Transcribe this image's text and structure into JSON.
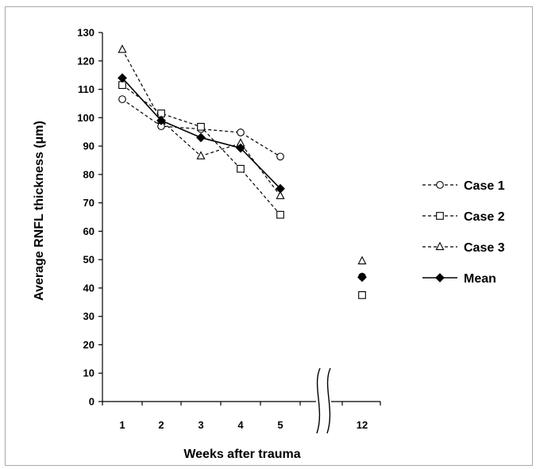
{
  "chart_data": {
    "type": "line",
    "title": "",
    "xlabel": "Weeks after trauma",
    "ylabel": "Average RNFL thickness (μm)",
    "x_categories": [
      "1",
      "2",
      "3",
      "4",
      "5",
      "12"
    ],
    "x_values": [
      1,
      2,
      3,
      4,
      5,
      12
    ],
    "x_axis_break_between": [
      5,
      12
    ],
    "ylim": [
      0,
      130
    ],
    "y_ticks": [
      0,
      10,
      20,
      30,
      40,
      50,
      60,
      70,
      80,
      90,
      100,
      110,
      120,
      130
    ],
    "y_tick_labels": [
      "0",
      "10",
      "20",
      "30",
      "40",
      "50",
      "60",
      "70",
      "80",
      "90",
      "100",
      "110",
      "120",
      "130"
    ],
    "grid": false,
    "legend_position": "right",
    "series": [
      {
        "name": "Case 1",
        "marker": "circle",
        "line_style": "dashed",
        "color": "#000000",
        "points": [
          [
            1,
            106.5
          ],
          [
            2,
            97
          ],
          [
            3,
            96
          ],
          [
            4,
            94.8
          ],
          [
            5,
            86.3
          ],
          [
            12,
            44
          ]
        ],
        "connected_until": 5
      },
      {
        "name": "Case 2",
        "marker": "square",
        "line_style": "dashed",
        "color": "#000000",
        "points": [
          [
            1,
            111.5
          ],
          [
            2,
            101.5
          ],
          [
            3,
            96.8
          ],
          [
            4,
            82
          ],
          [
            5,
            65.8
          ],
          [
            12,
            37.5
          ]
        ],
        "connected_until": 5
      },
      {
        "name": "Case 3",
        "marker": "triangle",
        "line_style": "dashed",
        "color": "#000000",
        "points": [
          [
            1,
            124
          ],
          [
            2,
            99
          ],
          [
            3,
            86.5
          ],
          [
            4,
            91
          ],
          [
            5,
            72.5
          ],
          [
            12,
            49.5
          ]
        ],
        "connected_until": 5
      },
      {
        "name": "Mean",
        "marker": "diamond-filled",
        "line_style": "solid",
        "color": "#000000",
        "points": [
          [
            1,
            114
          ],
          [
            2,
            99
          ],
          [
            3,
            93
          ],
          [
            4,
            89.3
          ],
          [
            5,
            75
          ],
          [
            12,
            43.8
          ]
        ],
        "connected_until": 5
      }
    ]
  }
}
